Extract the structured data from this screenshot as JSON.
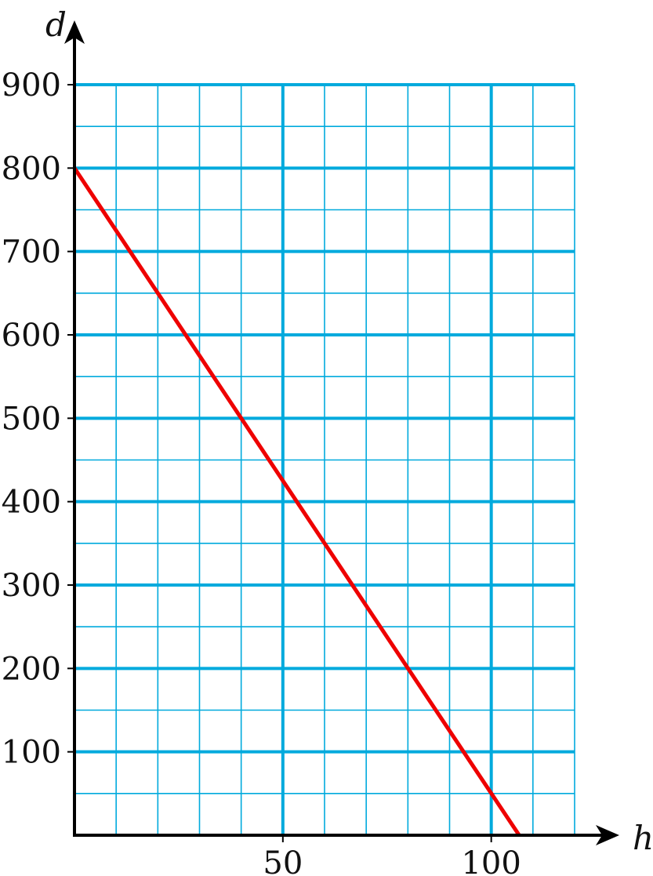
{
  "chart_data": {
    "type": "line",
    "xlabel": "h",
    "ylabel": "d",
    "xlim": [
      0,
      120
    ],
    "ylim": [
      0,
      900
    ],
    "x_ticks": [
      50,
      100
    ],
    "x_tick_labels": [
      "50",
      "100"
    ],
    "y_ticks": [
      100,
      200,
      300,
      400,
      500,
      600,
      700,
      800,
      900
    ],
    "y_tick_labels": [
      "100",
      "200",
      "300",
      "400",
      "500",
      "600",
      "700",
      "800",
      "900"
    ],
    "grid": true,
    "x_minor_step": 10,
    "y_minor_step": 50,
    "x_major_step": 50,
    "y_major_step": 100,
    "colors": {
      "grid": "#00aadd",
      "line": "#ee0000",
      "axis": "#000000"
    },
    "series": [
      {
        "x": [
          0,
          106.7
        ],
        "y": [
          800,
          0
        ]
      }
    ]
  }
}
